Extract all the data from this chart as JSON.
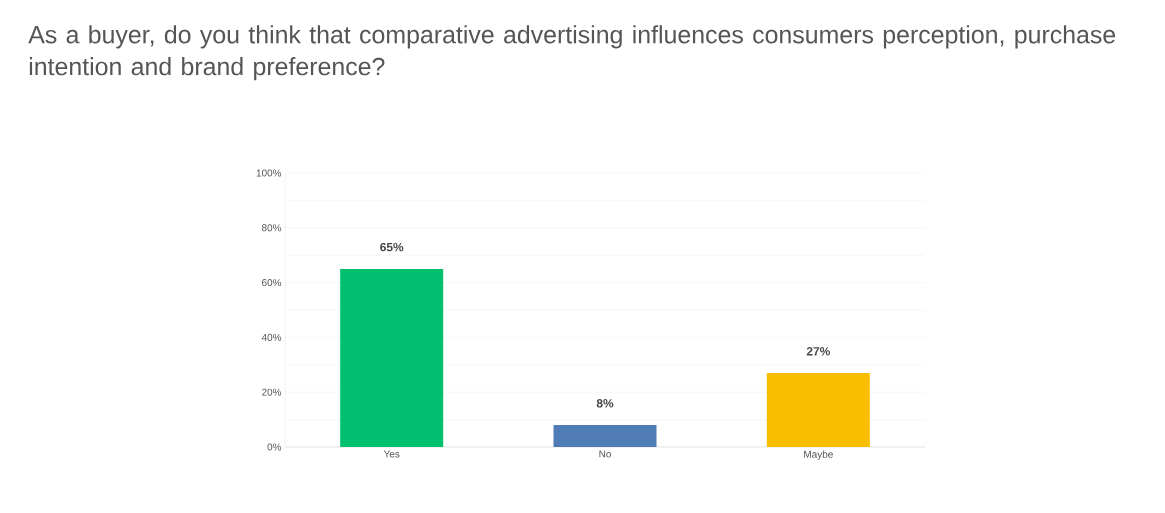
{
  "chart_data": {
    "type": "bar",
    "title": "As a buyer, do you think that comparative advertising influences consumers perception, purchase intention and brand preference?",
    "categories": [
      "Yes",
      "No",
      "Maybe"
    ],
    "values": [
      65,
      8,
      27
    ],
    "colors": [
      "#00bf6f",
      "#507cb6",
      "#f9be00"
    ],
    "value_labels": [
      "65%",
      "8%",
      "27%"
    ],
    "ylim": [
      0,
      100
    ],
    "yticks": [
      {
        "value": 0,
        "label": "0%"
      },
      {
        "value": 10,
        "label": null
      },
      {
        "value": 20,
        "label": "20%"
      },
      {
        "value": 30,
        "label": null
      },
      {
        "value": 40,
        "label": "40%"
      },
      {
        "value": 50,
        "label": null
      },
      {
        "value": 60,
        "label": "60%"
      },
      {
        "value": 70,
        "label": null
      },
      {
        "value": 80,
        "label": "80%"
      },
      {
        "value": 90,
        "label": null
      },
      {
        "value": 100,
        "label": "100%"
      }
    ],
    "grid": "y"
  }
}
